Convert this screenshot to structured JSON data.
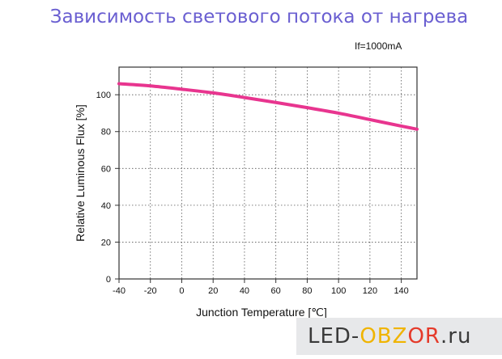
{
  "page": {
    "title": "Зависимость светового потока от нагрева"
  },
  "chart_data": {
    "type": "line",
    "annotation": "If=1000mA",
    "xlabel": "Junction Temperature [℃]",
    "ylabel": "Relative Luminous Flux [%]",
    "xlim": [
      -40,
      150
    ],
    "ylim": [
      0,
      115
    ],
    "xticks": [
      -40,
      -20,
      0,
      20,
      40,
      60,
      80,
      100,
      120,
      140
    ],
    "yticks": [
      0,
      20,
      40,
      60,
      80,
      100
    ],
    "grid": true,
    "series": [
      {
        "color": "#e8358f",
        "x": [
          -40,
          -20,
          0,
          20,
          40,
          60,
          80,
          100,
          120,
          140,
          150
        ],
        "y": [
          106,
          104.8,
          103,
          101,
          98.5,
          95.8,
          93,
          90,
          86.5,
          83,
          81.3
        ]
      }
    ]
  },
  "watermark": {
    "part1": "LED-",
    "part2": "OBZ",
    "part3": "OR",
    "part4": ".ru"
  }
}
